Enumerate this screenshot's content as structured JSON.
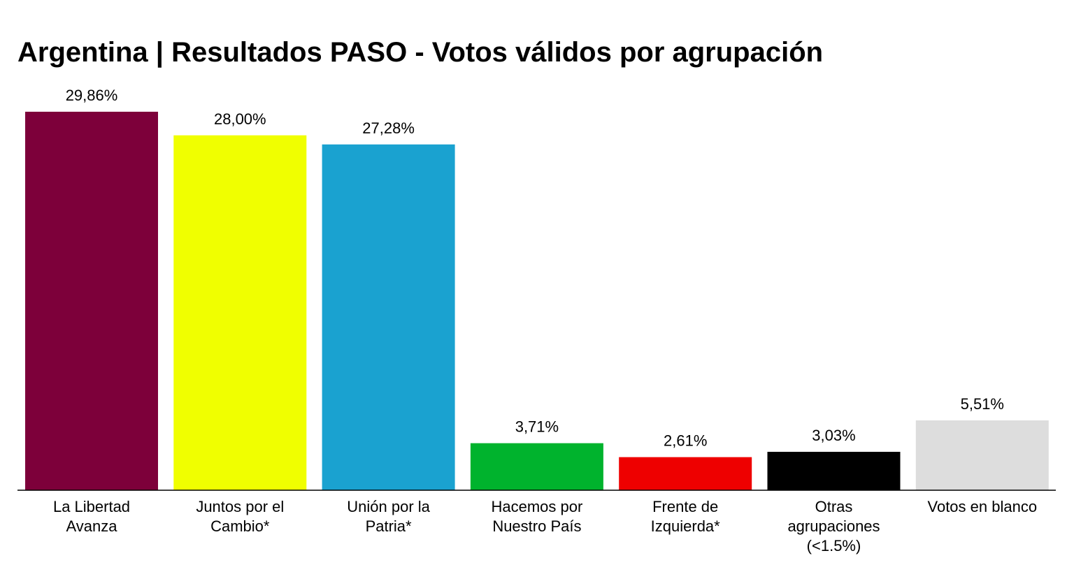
{
  "chart_data": {
    "type": "bar",
    "title": "Argentina | Resultados PASO - Votos válidos por agrupación",
    "categories": [
      [
        "La Libertad",
        "Avanza"
      ],
      [
        "Juntos por el",
        "Cambio*"
      ],
      [
        "Unión por la",
        "Patria*"
      ],
      [
        "Hacemos por",
        "Nuestro País"
      ],
      [
        "Frente de",
        "Izquierda*"
      ],
      [
        "Otras",
        "agrupaciones",
        "(<1.5%)"
      ],
      [
        "Votos en blanco"
      ]
    ],
    "values": [
      29.86,
      28.0,
      27.28,
      3.71,
      2.61,
      3.03,
      5.51
    ],
    "value_labels": [
      "29,86%",
      "28,00%",
      "27,28%",
      "3,71%",
      "2,61%",
      "3,03%",
      "5,51%"
    ],
    "colors": [
      "#7d003a",
      "#f0ff00",
      "#1aa2d0",
      "#00b32d",
      "#ee0000",
      "#000000",
      "#dddddd"
    ],
    "xlabel": "",
    "ylabel": "",
    "ylim": [
      0,
      29.86
    ],
    "grid": false,
    "legend": "none"
  }
}
